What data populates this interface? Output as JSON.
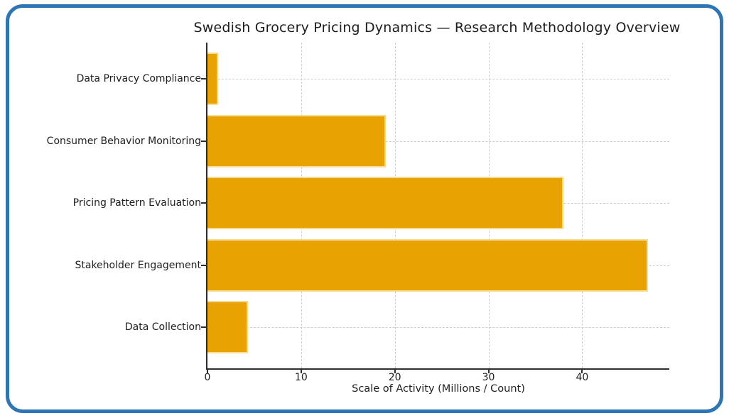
{
  "frame": {
    "border_color": "#2e75b6",
    "background_color": "#ffffff"
  },
  "chart_data": {
    "type": "bar",
    "orientation": "horizontal",
    "title": "Swedish Grocery Pricing Dynamics — Research Methodology Overview",
    "xlabel": "Scale of Activity (Millions / Count)",
    "ylabel": "",
    "categories": [
      "Data Privacy Compliance",
      "Consumer Behavior Monitoring",
      "Pricing Pattern Evaluation",
      "Stakeholder Engagement",
      "Data Collection"
    ],
    "values": [
      1.1,
      19,
      38,
      47,
      4.3
    ],
    "x_ticks": [
      0,
      10,
      20,
      30,
      40
    ],
    "x_tick_labels": [
      "0",
      "10",
      "20",
      "30",
      "40"
    ],
    "xlim": [
      0,
      49.3
    ],
    "grid": true,
    "grid_style": "dashed",
    "legend": null,
    "bar_color": "#e8a202",
    "bar_edge_color": "#f9dc93",
    "grid_color": "#cdcdcd",
    "spine_color": "#2e2e2e",
    "text_color": "#1d1d1d"
  }
}
